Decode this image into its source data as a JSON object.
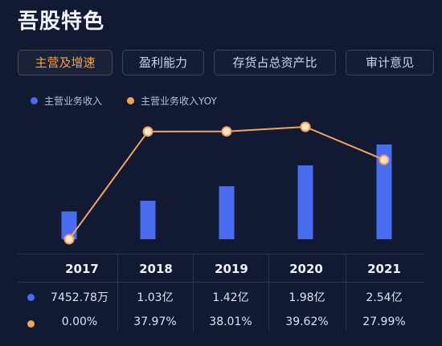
{
  "title": "吾股特色",
  "tabs": [
    {
      "label": "主营及增速",
      "active": true
    },
    {
      "label": "盈利能力",
      "active": false
    },
    {
      "label": "存货占总资产比",
      "active": false
    },
    {
      "label": "审计意见",
      "active": false
    }
  ],
  "legend": [
    {
      "label": "主营业务收入",
      "color": "#4a6cf0"
    },
    {
      "label": "主营业务收入YOY",
      "color": "#f5a25d"
    }
  ],
  "chart_data": {
    "type": "bar",
    "categories": [
      "2017",
      "2018",
      "2019",
      "2020",
      "2021"
    ],
    "series": [
      {
        "name": "主营业务收入",
        "values": [
          7452.78,
          10300,
          14200,
          19800,
          25400
        ],
        "color": "#4a6cf0"
      },
      {
        "name": "主营业务收入YOY",
        "values": [
          0.0,
          37.97,
          38.01,
          39.62,
          27.99
        ],
        "color": "#f5a25d"
      }
    ]
  },
  "table": {
    "years": [
      "2017",
      "2018",
      "2019",
      "2020",
      "2021"
    ],
    "revenue_labels": [
      "7452.78万",
      "1.03亿",
      "1.42亿",
      "1.98亿",
      "2.54亿"
    ],
    "yoy_labels": [
      "0.00%",
      "37.97%",
      "38.01%",
      "39.62%",
      "27.99%"
    ]
  },
  "colors": {
    "revenue": "#4a6cf0",
    "yoy": "#f5a25d",
    "accent": "#f0a04b"
  }
}
